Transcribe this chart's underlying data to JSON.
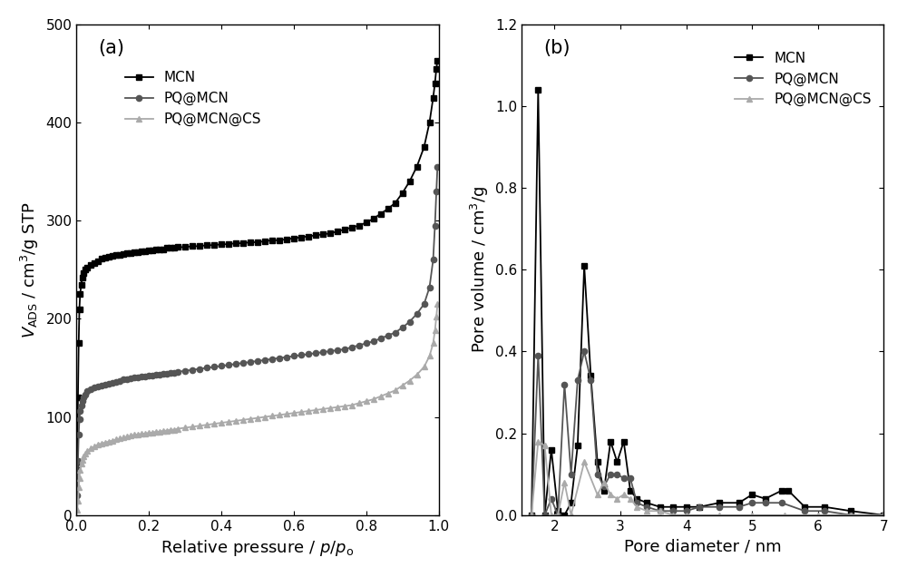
{
  "panel_a": {
    "title": "(a)",
    "xlabel": "Relative pressure / $p/p_{\\mathrm{o}}$",
    "ylabel": "$V_{\\mathrm{ADS}}$ / cm$^{3}$/g STP",
    "xlim": [
      0.0,
      1.0
    ],
    "ylim": [
      0,
      500
    ],
    "yticks": [
      0,
      100,
      200,
      300,
      400,
      500
    ],
    "xticks": [
      0.0,
      0.2,
      0.4,
      0.6,
      0.8,
      1.0
    ],
    "MCN_x": [
      0.002,
      0.004,
      0.006,
      0.008,
      0.01,
      0.013,
      0.016,
      0.02,
      0.025,
      0.03,
      0.04,
      0.05,
      0.06,
      0.07,
      0.08,
      0.09,
      0.1,
      0.11,
      0.12,
      0.13,
      0.14,
      0.15,
      0.16,
      0.17,
      0.18,
      0.19,
      0.2,
      0.21,
      0.22,
      0.23,
      0.24,
      0.25,
      0.26,
      0.27,
      0.28,
      0.3,
      0.32,
      0.34,
      0.36,
      0.38,
      0.4,
      0.42,
      0.44,
      0.46,
      0.48,
      0.5,
      0.52,
      0.54,
      0.56,
      0.58,
      0.6,
      0.62,
      0.64,
      0.66,
      0.68,
      0.7,
      0.72,
      0.74,
      0.76,
      0.78,
      0.8,
      0.82,
      0.84,
      0.86,
      0.88,
      0.9,
      0.92,
      0.94,
      0.96,
      0.975,
      0.985,
      0.99,
      0.994,
      0.997
    ],
    "MCN_y": [
      50,
      120,
      175,
      210,
      225,
      235,
      242,
      247,
      250,
      252,
      255,
      257,
      259,
      261,
      262,
      263,
      264,
      265,
      265,
      266,
      267,
      267,
      268,
      268,
      269,
      269,
      270,
      270,
      271,
      271,
      271,
      272,
      272,
      272,
      273,
      273,
      274,
      274,
      275,
      275,
      276,
      276,
      277,
      277,
      278,
      278,
      279,
      280,
      280,
      281,
      282,
      283,
      284,
      285,
      286,
      287,
      289,
      291,
      293,
      295,
      298,
      302,
      307,
      312,
      318,
      328,
      340,
      355,
      375,
      400,
      425,
      440,
      455,
      463
    ],
    "PQ_MCN_x": [
      0.002,
      0.004,
      0.006,
      0.008,
      0.01,
      0.013,
      0.016,
      0.02,
      0.025,
      0.03,
      0.04,
      0.05,
      0.06,
      0.07,
      0.08,
      0.09,
      0.1,
      0.11,
      0.12,
      0.13,
      0.14,
      0.15,
      0.16,
      0.17,
      0.18,
      0.19,
      0.2,
      0.21,
      0.22,
      0.23,
      0.24,
      0.25,
      0.26,
      0.27,
      0.28,
      0.3,
      0.32,
      0.34,
      0.36,
      0.38,
      0.4,
      0.42,
      0.44,
      0.46,
      0.48,
      0.5,
      0.52,
      0.54,
      0.56,
      0.58,
      0.6,
      0.62,
      0.64,
      0.66,
      0.68,
      0.7,
      0.72,
      0.74,
      0.76,
      0.78,
      0.8,
      0.82,
      0.84,
      0.86,
      0.88,
      0.9,
      0.92,
      0.94,
      0.96,
      0.975,
      0.985,
      0.99,
      0.994,
      0.997
    ],
    "PQ_MCN_y": [
      20,
      55,
      82,
      98,
      106,
      112,
      116,
      120,
      123,
      126,
      128,
      130,
      131,
      132,
      133,
      134,
      135,
      136,
      137,
      138,
      138,
      139,
      140,
      140,
      141,
      141,
      142,
      142,
      143,
      143,
      144,
      144,
      145,
      145,
      146,
      147,
      148,
      149,
      150,
      151,
      152,
      153,
      154,
      155,
      156,
      157,
      158,
      159,
      160,
      161,
      162,
      163,
      164,
      165,
      166,
      167,
      168,
      169,
      171,
      173,
      175,
      177,
      180,
      183,
      186,
      191,
      197,
      205,
      215,
      232,
      260,
      295,
      330,
      355
    ],
    "PQ_MCN_CS_x": [
      0.002,
      0.004,
      0.006,
      0.008,
      0.01,
      0.013,
      0.016,
      0.02,
      0.025,
      0.03,
      0.04,
      0.05,
      0.06,
      0.07,
      0.08,
      0.09,
      0.1,
      0.11,
      0.12,
      0.13,
      0.14,
      0.15,
      0.16,
      0.17,
      0.18,
      0.19,
      0.2,
      0.21,
      0.22,
      0.23,
      0.24,
      0.25,
      0.26,
      0.27,
      0.28,
      0.3,
      0.32,
      0.34,
      0.36,
      0.38,
      0.4,
      0.42,
      0.44,
      0.46,
      0.48,
      0.5,
      0.52,
      0.54,
      0.56,
      0.58,
      0.6,
      0.62,
      0.64,
      0.66,
      0.68,
      0.7,
      0.72,
      0.74,
      0.76,
      0.78,
      0.8,
      0.82,
      0.84,
      0.86,
      0.88,
      0.9,
      0.92,
      0.94,
      0.96,
      0.975,
      0.985,
      0.99,
      0.994,
      0.997
    ],
    "PQ_MCN_CS_y": [
      5,
      15,
      28,
      38,
      46,
      52,
      56,
      60,
      63,
      65,
      68,
      70,
      72,
      73,
      74,
      75,
      76,
      77,
      78,
      79,
      80,
      81,
      82,
      82,
      83,
      83,
      84,
      84,
      85,
      85,
      86,
      86,
      87,
      87,
      88,
      89,
      90,
      91,
      92,
      93,
      94,
      95,
      96,
      97,
      98,
      99,
      100,
      101,
      102,
      103,
      104,
      105,
      106,
      107,
      108,
      109,
      110,
      111,
      112,
      114,
      116,
      118,
      121,
      124,
      127,
      132,
      137,
      143,
      151,
      162,
      175,
      188,
      202,
      215
    ]
  },
  "panel_b": {
    "title": "(b)",
    "xlabel": "Pore diameter / nm",
    "ylabel": "Pore volume / cm$^{3}$/g",
    "xlim": [
      1.5,
      7.0
    ],
    "ylim": [
      0.0,
      1.2
    ],
    "yticks": [
      0.0,
      0.2,
      0.4,
      0.6,
      0.8,
      1.0,
      1.2
    ],
    "xticks": [
      2,
      3,
      4,
      5,
      6,
      7
    ],
    "MCN_x": [
      1.65,
      1.75,
      1.85,
      1.95,
      2.05,
      2.15,
      2.25,
      2.35,
      2.45,
      2.55,
      2.65,
      2.75,
      2.85,
      2.95,
      3.05,
      3.15,
      3.25,
      3.4,
      3.6,
      3.8,
      4.0,
      4.2,
      4.5,
      4.8,
      5.0,
      5.2,
      5.45,
      5.55,
      5.8,
      6.1,
      6.5,
      7.0
    ],
    "MCN_y": [
      0.0,
      1.04,
      0.0,
      0.16,
      0.01,
      0.0,
      0.03,
      0.17,
      0.61,
      0.34,
      0.13,
      0.06,
      0.18,
      0.13,
      0.18,
      0.06,
      0.04,
      0.03,
      0.02,
      0.02,
      0.02,
      0.02,
      0.03,
      0.03,
      0.05,
      0.04,
      0.06,
      0.06,
      0.02,
      0.02,
      0.01,
      0.0
    ],
    "PQ_MCN_x": [
      1.65,
      1.75,
      1.85,
      1.95,
      2.05,
      2.15,
      2.25,
      2.35,
      2.45,
      2.55,
      2.65,
      2.75,
      2.85,
      2.95,
      3.05,
      3.15,
      3.25,
      3.4,
      3.6,
      3.8,
      4.0,
      4.2,
      4.5,
      4.8,
      5.0,
      5.2,
      5.45,
      5.8,
      6.1,
      6.5,
      7.0
    ],
    "PQ_MCN_y": [
      0.0,
      0.39,
      0.0,
      0.04,
      0.0,
      0.32,
      0.1,
      0.33,
      0.4,
      0.33,
      0.1,
      0.07,
      0.1,
      0.1,
      0.09,
      0.09,
      0.03,
      0.02,
      0.01,
      0.01,
      0.01,
      0.02,
      0.02,
      0.02,
      0.03,
      0.03,
      0.03,
      0.01,
      0.01,
      0.0,
      0.0
    ],
    "PQ_MCN_CS_x": [
      1.65,
      1.75,
      1.85,
      1.95,
      2.05,
      2.15,
      2.25,
      2.45,
      2.65,
      2.75,
      2.85,
      2.95,
      3.05,
      3.15,
      3.25,
      3.4,
      3.6,
      3.8,
      4.0,
      4.5,
      5.0,
      5.5,
      6.0,
      6.5,
      7.0
    ],
    "PQ_MCN_CS_y": [
      0.0,
      0.18,
      0.17,
      0.0,
      0.0,
      0.08,
      0.0,
      0.13,
      0.05,
      0.08,
      0.05,
      0.04,
      0.05,
      0.04,
      0.02,
      0.01,
      0.01,
      0.0,
      0.0,
      0.0,
      0.0,
      0.0,
      0.0,
      0.0,
      0.0
    ]
  },
  "colors": {
    "MCN": "#000000",
    "PQ_MCN": "#555555",
    "PQ_MCN_CS": "#aaaaaa"
  },
  "legend_labels": [
    "MCN",
    "PQ@MCN",
    "PQ@MCN@CS"
  ]
}
